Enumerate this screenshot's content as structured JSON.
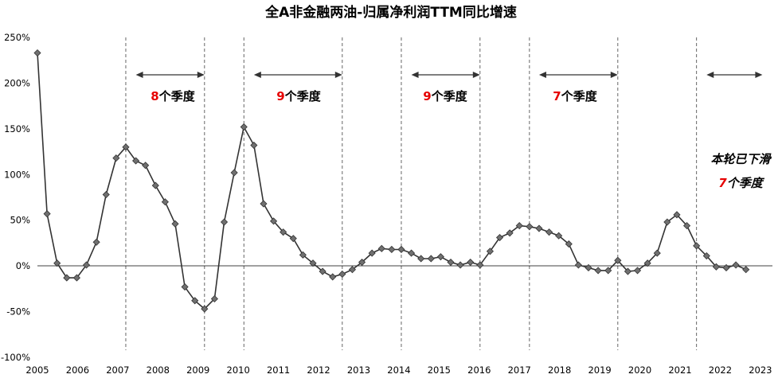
{
  "chart_data": {
    "type": "line",
    "title": "全A非金融两油-归属净利润TTM同比增速",
    "xlabel": "",
    "ylabel": "",
    "ylim": [
      -100,
      250
    ],
    "xlim": [
      2005.0,
      2023.3
    ],
    "y_ticks": [
      -100,
      -50,
      0,
      50,
      100,
      150,
      200,
      250
    ],
    "y_tick_labels": [
      "-100%",
      "-50%",
      "0%",
      "50%",
      "100%",
      "150%",
      "200%",
      "250%"
    ],
    "x_ticks": [
      2005,
      2006,
      2007,
      2008,
      2009,
      2010,
      2011,
      2012,
      2013,
      2014,
      2015,
      2016,
      2017,
      2018,
      2019,
      2020,
      2021,
      2022,
      2023
    ],
    "x_tick_labels": [
      "2005",
      "2006",
      "2007",
      "2008",
      "2009",
      "2010",
      "2011",
      "2012",
      "2013",
      "2014",
      "2015",
      "2016",
      "2017",
      "2018",
      "2019",
      "2020",
      "2021",
      "2022",
      "2023"
    ],
    "grid": "vertical dashed",
    "marker": "diamond",
    "color": "#333333",
    "marker_color": "#707070",
    "series": [
      {
        "x": [
          2005.0,
          2005.24,
          2005.49,
          2005.73,
          2005.98,
          2006.22,
          2006.47,
          2006.71,
          2006.96,
          2007.2,
          2007.45,
          2007.69,
          2007.94,
          2008.18,
          2008.43,
          2008.67,
          2008.92,
          2009.16,
          2009.41,
          2009.65,
          2009.9,
          2010.14,
          2010.39,
          2010.63,
          2010.88,
          2011.12,
          2011.37,
          2011.61,
          2011.86,
          2012.1,
          2012.35,
          2012.59,
          2012.84,
          2013.08,
          2013.33,
          2013.57,
          2013.82,
          2014.06,
          2014.31,
          2014.55,
          2014.8,
          2015.04,
          2015.29,
          2015.53,
          2015.78,
          2016.02,
          2016.27,
          2016.51,
          2016.76,
          2017.0,
          2017.25,
          2017.49,
          2017.74,
          2017.98,
          2018.23,
          2018.47,
          2018.72,
          2018.96,
          2019.21,
          2019.45,
          2019.7,
          2019.94,
          2020.19,
          2020.43,
          2020.68,
          2020.92,
          2021.17,
          2021.41,
          2021.66,
          2021.9,
          2022.15,
          2022.39,
          2022.64,
          2022.88,
          2023.12
        ],
        "y": [
          233,
          57,
          3,
          -13,
          -13,
          1,
          26,
          78,
          118,
          130,
          115,
          110,
          88,
          70,
          46,
          -23,
          -38,
          -47,
          -36,
          48,
          102,
          152,
          132,
          68,
          49,
          37,
          30,
          12,
          3,
          -6,
          -12,
          -9,
          -4,
          4,
          14,
          19,
          18,
          18,
          14,
          8,
          8,
          10,
          4,
          1,
          4,
          1,
          16,
          31,
          36,
          44,
          43,
          41,
          37,
          33,
          24,
          1,
          -2,
          -5,
          -5,
          6,
          -6,
          -5,
          3,
          14,
          48,
          56,
          44,
          22,
          11,
          -1,
          -2,
          1,
          -4,
          null,
          null
        ]
      }
    ],
    "annotations": [
      {
        "number": "8",
        "text": "个季度"
      },
      {
        "number": "9",
        "text": "个季度"
      },
      {
        "number": "9",
        "text": "个季度"
      },
      {
        "number": "7",
        "text": "个季度"
      },
      {
        "line1": "本轮已下滑",
        "number": "7",
        "text": "个季度"
      }
    ]
  }
}
